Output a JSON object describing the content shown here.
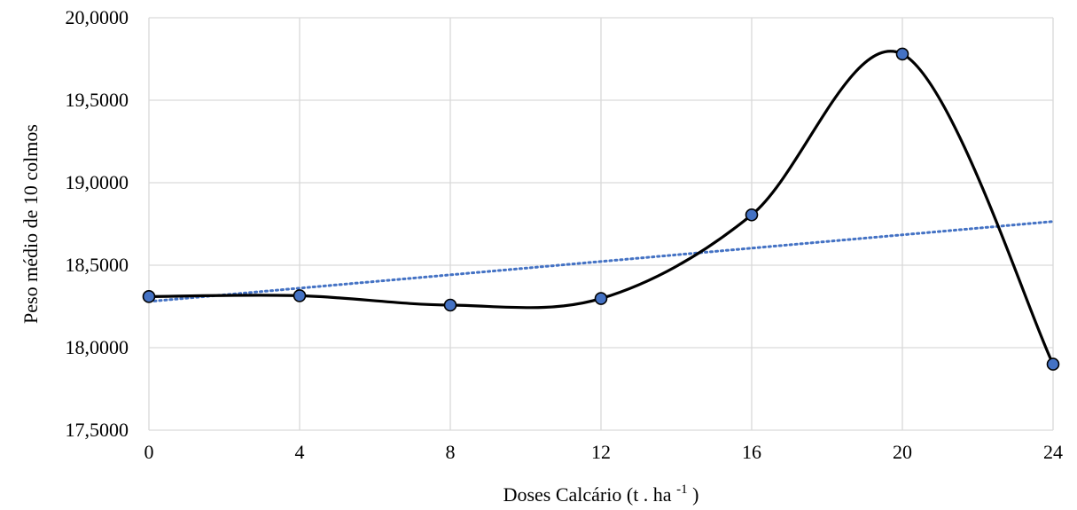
{
  "chart_data": {
    "type": "line",
    "x": [
      0,
      4,
      8,
      12,
      16,
      20,
      24
    ],
    "series": [
      {
        "values": [
          18.31,
          18.315,
          18.258,
          18.298,
          18.805,
          19.78,
          17.9
        ],
        "color": "#000000",
        "marker_color": "#4472c4",
        "style": "smooth"
      }
    ],
    "trendline": {
      "type": "linear",
      "color": "#4472c4",
      "style": "dotted",
      "start": [
        0,
        18.28
      ],
      "end": [
        24,
        18.765
      ]
    },
    "x_ticks": [
      "0",
      "4",
      "8",
      "12",
      "16",
      "20",
      "24"
    ],
    "y_ticks": [
      "17,5000",
      "18,0000",
      "18,5000",
      "19,0000",
      "19,5000",
      "20,0000"
    ],
    "xlim": [
      0,
      24
    ],
    "ylim": [
      17.5,
      20.0
    ],
    "xlabel": {
      "main": "Doses Calcário (t . ha",
      "sup": "-1",
      "close": ")"
    },
    "ylabel": "Peso médio de 10 colmos",
    "grid": true,
    "legend": "none"
  }
}
